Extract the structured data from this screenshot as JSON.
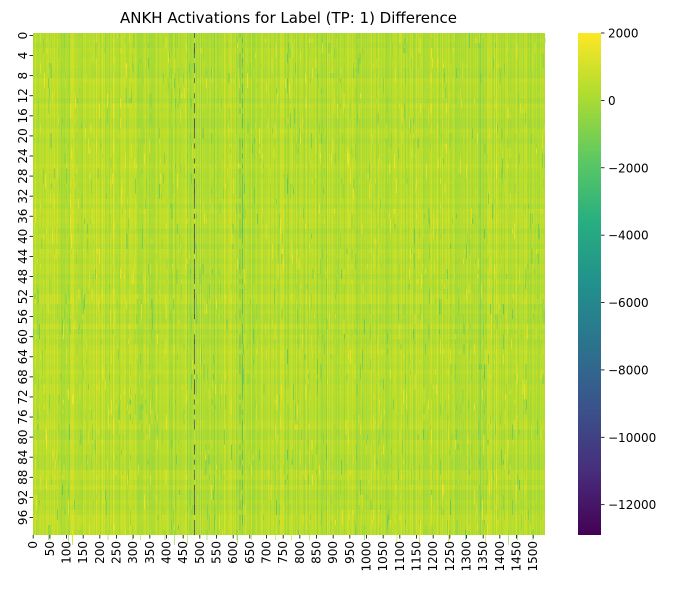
{
  "chart_data": {
    "type": "heatmap",
    "title": "ANKH Activations for Label (TP: 1) Difference",
    "xlabel": "",
    "ylabel": "",
    "n_rows": 100,
    "n_cols": 1536,
    "x_ticks": [
      0,
      50,
      100,
      150,
      200,
      250,
      300,
      350,
      400,
      450,
      500,
      550,
      600,
      650,
      700,
      750,
      800,
      850,
      900,
      950,
      1000,
      1050,
      1100,
      1150,
      1200,
      1250,
      1300,
      1350,
      1400,
      1450,
      1500
    ],
    "y_ticks": [
      0,
      4,
      8,
      12,
      16,
      20,
      24,
      28,
      32,
      36,
      40,
      44,
      48,
      52,
      56,
      60,
      64,
      68,
      72,
      76,
      80,
      84,
      88,
      92,
      96
    ],
    "colorbar": {
      "colormap": "viridis",
      "vmin": -12900,
      "vmax": 2000,
      "ticks": [
        2000,
        0,
        -2000,
        -4000,
        -6000,
        -8000,
        -10000,
        -12000
      ],
      "tick_labels": [
        "2000",
        "0",
        "−2000",
        "−4000",
        "−6000",
        "−8000",
        "−10000",
        "−12000"
      ]
    },
    "typical_range": [
      -1500,
      2000
    ],
    "strong_negative_columns": [
      {
        "col": 483,
        "value": -12900
      },
      {
        "col": 620,
        "value": -4500
      },
      {
        "col": 628,
        "value": -3500
      }
    ],
    "grid": false
  }
}
